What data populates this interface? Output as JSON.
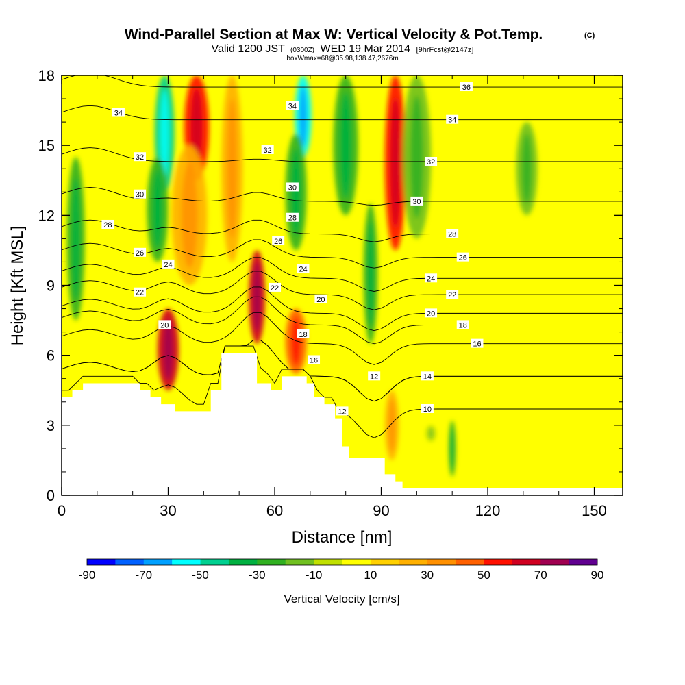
{
  "chart_data": {
    "type": "heatmap",
    "title": "Wind-Parallel Section at Max W: Vertical Velocity & Pot.Temp.",
    "title_mark": "(C)",
    "subtitle_main": "Valid 1200 JST",
    "subtitle_zulu": "(0300Z)",
    "subtitle_date": "WED 19 Mar 2014",
    "subtitle_fcst": "[9hrFcst@2147z]",
    "subtitle2": "boxWmax=68@35.98,138.47,2676m",
    "xlabel": "Distance [nm]",
    "ylabel": "Height [Kft MSL]",
    "xlim": [
      0,
      158
    ],
    "ylim": [
      0,
      18
    ],
    "x_ticks": [
      0,
      30,
      60,
      90,
      120,
      150
    ],
    "x_tick_labels": [
      "0",
      "30",
      "60",
      "90",
      "120",
      "150"
    ],
    "y_ticks": [
      0,
      3,
      6,
      9,
      12,
      15,
      18
    ],
    "y_tick_labels": [
      "0",
      "3",
      "6",
      "9",
      "12",
      "15",
      "18"
    ],
    "colorbar": {
      "title": "Vertical Velocity [cm/s]",
      "min": -90,
      "max": 90,
      "step": 10,
      "tick_labels": [
        "-90",
        "-70",
        "-50",
        "-30",
        "-10",
        "10",
        "30",
        "50",
        "70",
        "90"
      ],
      "colors": [
        "#0000ff",
        "#0060ff",
        "#00a0ff",
        "#00ffff",
        "#00d090",
        "#00b040",
        "#30b020",
        "#70c020",
        "#c0e000",
        "#ffff00",
        "#ffd000",
        "#ffb000",
        "#ff9000",
        "#ff6000",
        "#ff1000",
        "#d00020",
        "#a00050",
        "#600090"
      ]
    },
    "terrain_profile": {
      "x": [
        0,
        3,
        3,
        6,
        6,
        22,
        22,
        25,
        25,
        28,
        28,
        32,
        32,
        42,
        42,
        45,
        45,
        55,
        55,
        59,
        59,
        62,
        62,
        69,
        69,
        71,
        71,
        74,
        74,
        77,
        77,
        79,
        79,
        81,
        81,
        91,
        91,
        94,
        94,
        96,
        96,
        158
      ],
      "y": [
        4.2,
        4.2,
        4.5,
        4.5,
        4.8,
        4.8,
        4.5,
        4.5,
        4.2,
        4.2,
        3.9,
        3.9,
        3.6,
        3.6,
        4.5,
        4.5,
        6.1,
        6.1,
        4.8,
        4.8,
        4.5,
        4.5,
        5.1,
        5.1,
        4.8,
        4.8,
        4.2,
        4.2,
        3.9,
        3.9,
        3.3,
        3.3,
        2.1,
        2.1,
        1.6,
        1.6,
        0.9,
        0.9,
        0.6,
        0.6,
        0.3,
        0.3
      ]
    },
    "vertical_velocity_features": [
      {
        "x": 30,
        "y0": 4.5,
        "y1": 8.0,
        "w": 3.0,
        "value": 60
      },
      {
        "x": 38,
        "y0": 13.5,
        "y1": 18,
        "w": 3.5,
        "value": 55
      },
      {
        "x": 36,
        "y0": 9.0,
        "y1": 15.0,
        "w": 5.0,
        "value": 25
      },
      {
        "x": 29,
        "y0": 13.0,
        "y1": 18,
        "w": 2.8,
        "value": -50
      },
      {
        "x": 27,
        "y0": 10.0,
        "y1": 14.5,
        "w": 3.0,
        "value": -30
      },
      {
        "x": 55,
        "y0": 6.5,
        "y1": 10.5,
        "w": 2.3,
        "value": 60
      },
      {
        "x": 48,
        "y0": 10.0,
        "y1": 18,
        "w": 3.0,
        "value": 20
      },
      {
        "x": 66,
        "y0": 5.2,
        "y1": 8.0,
        "w": 3.0,
        "value": 40
      },
      {
        "x": 68,
        "y0": 14.5,
        "y1": 18,
        "w": 2.4,
        "value": -55
      },
      {
        "x": 66,
        "y0": 10.5,
        "y1": 15.5,
        "w": 3.0,
        "value": -30
      },
      {
        "x": 80,
        "y0": 12.0,
        "y1": 18,
        "w": 3.5,
        "value": -30
      },
      {
        "x": 87,
        "y0": 6.5,
        "y1": 12.5,
        "w": 2.0,
        "value": -25
      },
      {
        "x": 94,
        "y0": 10.5,
        "y1": 18,
        "w": 3.0,
        "value": 55
      },
      {
        "x": 93,
        "y0": 1.5,
        "y1": 4.5,
        "w": 2.0,
        "value": 20
      },
      {
        "x": 4,
        "y0": 7.5,
        "y1": 14.5,
        "w": 2.5,
        "value": -25
      },
      {
        "x": 100,
        "y0": 11.0,
        "y1": 18,
        "w": 4.0,
        "value": -15
      },
      {
        "x": 104,
        "y0": 2.3,
        "y1": 3.0,
        "w": 1.5,
        "value": -10
      },
      {
        "x": 110,
        "y0": 0.8,
        "y1": 3.2,
        "w": 1.0,
        "value": -25
      },
      {
        "x": 131,
        "y0": 12.0,
        "y1": 16.0,
        "w": 3.0,
        "value": -15
      }
    ],
    "isentropes": [
      {
        "level": 10,
        "label": "10",
        "label_at": [
          103,
          3.7
        ]
      },
      {
        "level": 12,
        "label": "12",
        "label_at": [
          88,
          5.1
        ]
      },
      {
        "level": 14,
        "label": "14",
        "label_at": [
          103,
          5.1
        ]
      },
      {
        "level": 16,
        "label": "16",
        "label_at": [
          117,
          6.5
        ]
      },
      {
        "level": 18,
        "label": "18",
        "label_at": [
          113,
          7.3
        ]
      },
      {
        "level": 20,
        "label": "20",
        "label_at": [
          104,
          7.8
        ]
      },
      {
        "level": 22,
        "label": "22",
        "label_at": [
          110,
          8.6
        ]
      },
      {
        "level": 24,
        "label": "24",
        "label_at": [
          104,
          9.3
        ]
      },
      {
        "level": 26,
        "label": "26",
        "label_at": [
          113,
          10.2
        ]
      },
      {
        "level": 28,
        "label": "28",
        "label_at": [
          110,
          11.2
        ]
      },
      {
        "level": 30,
        "label": "30",
        "label_at": [
          100,
          12.6
        ]
      },
      {
        "level": 32,
        "label": "32",
        "label_at": [
          104,
          14.3
        ]
      },
      {
        "level": 34,
        "label": "34",
        "label_at": [
          110,
          16.1
        ]
      },
      {
        "level": 36,
        "label": "36",
        "label_at": [
          114,
          17.5
        ]
      }
    ],
    "isentrope_labels_extra": [
      {
        "label": "34",
        "x": 16,
        "y": 16.4
      },
      {
        "label": "32",
        "x": 22,
        "y": 14.5
      },
      {
        "label": "30",
        "x": 22,
        "y": 12.9
      },
      {
        "label": "28",
        "x": 13,
        "y": 11.6
      },
      {
        "label": "26",
        "x": 22,
        "y": 10.4
      },
      {
        "label": "24",
        "x": 30,
        "y": 9.9
      },
      {
        "label": "22",
        "x": 22,
        "y": 8.7
      },
      {
        "label": "20",
        "x": 29,
        "y": 7.3
      },
      {
        "label": "34",
        "x": 65,
        "y": 16.7
      },
      {
        "label": "32",
        "x": 58,
        "y": 14.8
      },
      {
        "label": "30",
        "x": 65,
        "y": 13.2
      },
      {
        "label": "28",
        "x": 65,
        "y": 11.9
      },
      {
        "label": "26",
        "x": 61,
        "y": 10.9
      },
      {
        "label": "24",
        "x": 68,
        "y": 9.7
      },
      {
        "label": "22",
        "x": 60,
        "y": 8.9
      },
      {
        "label": "20",
        "x": 73,
        "y": 8.4
      },
      {
        "label": "18",
        "x": 68,
        "y": 6.9
      },
      {
        "label": "16",
        "x": 71,
        "y": 5.8
      },
      {
        "label": "12",
        "x": 79,
        "y": 3.6
      }
    ]
  }
}
